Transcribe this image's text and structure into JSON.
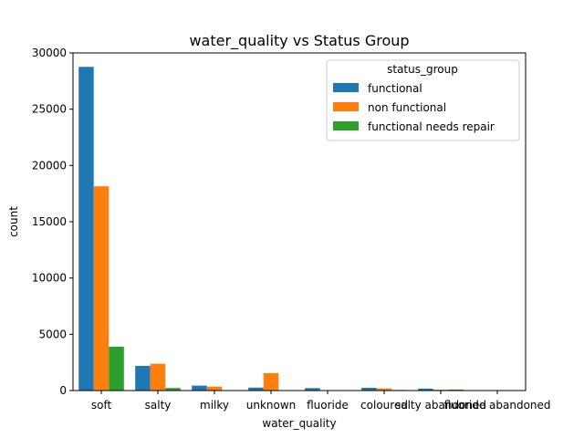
{
  "chart_data": {
    "type": "bar",
    "title": "water_quality vs Status Group",
    "xlabel": "water_quality",
    "ylabel": "count",
    "ylim": [
      0,
      30000
    ],
    "yticks": [
      0,
      5000,
      10000,
      15000,
      20000,
      25000,
      30000
    ],
    "categories": [
      "soft",
      "salty",
      "milky",
      "unknown",
      "fluoride",
      "coloured",
      "salty abandoned",
      "fluoride abandoned"
    ],
    "legend": {
      "title": "status_group",
      "placement": "top-right"
    },
    "grid": false,
    "series": [
      {
        "name": "functional",
        "color": "#1f77b4",
        "values": [
          28760,
          2194,
          438,
          264,
          217,
          246,
          174,
          12
        ]
      },
      {
        "name": "non functional",
        "color": "#ff7f0e",
        "values": [
          18150,
          2378,
          350,
          1550,
          29,
          190,
          72,
          5
        ]
      },
      {
        "name": "functional needs repair",
        "color": "#2ca02c",
        "values": [
          3900,
          225,
          14,
          35,
          14,
          54,
          93,
          0
        ]
      }
    ]
  }
}
